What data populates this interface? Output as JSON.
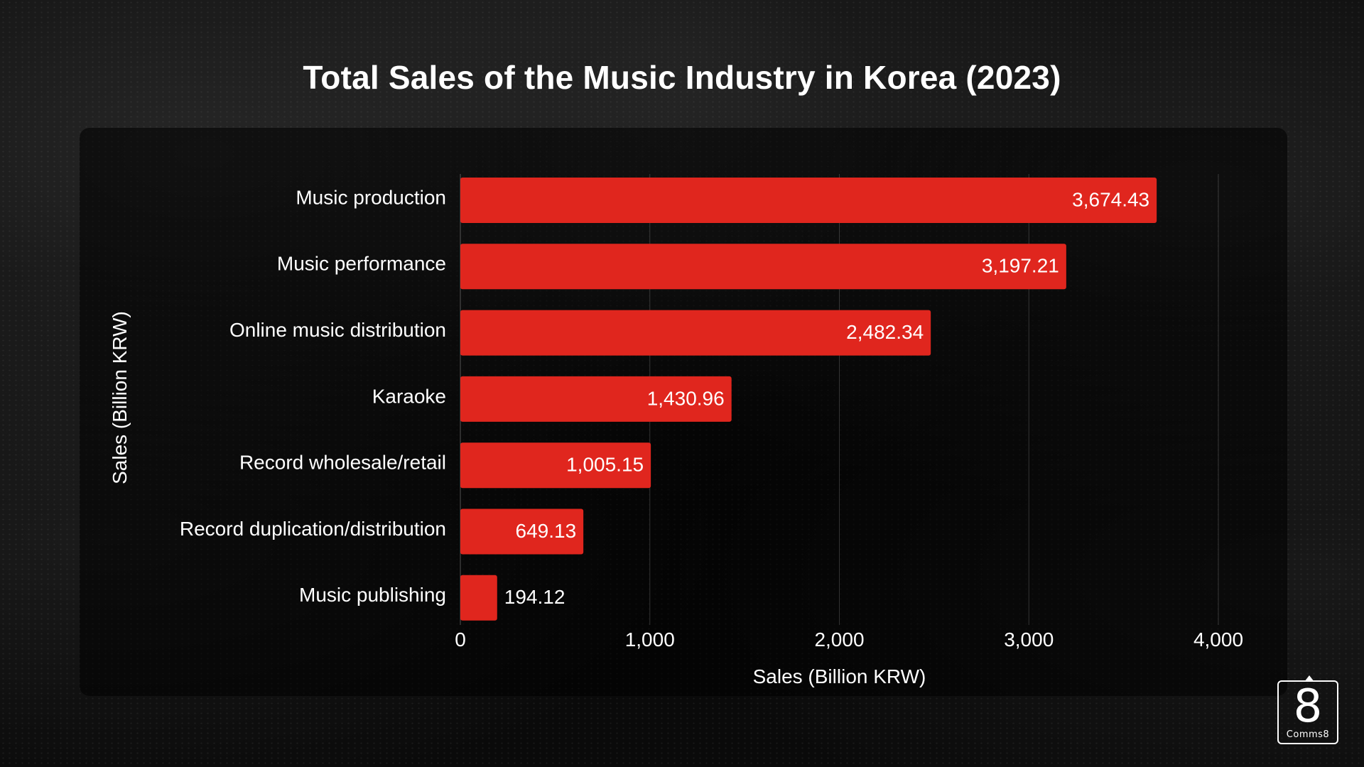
{
  "chart_data": {
    "type": "bar",
    "orientation": "horizontal",
    "title": "Total Sales of the Music Industry in Korea (2023)",
    "xlabel": "Sales (Billion KRW)",
    "ylabel": "Sales (Billion KRW)",
    "categories": [
      "Music production",
      "Music performance",
      "Online music distribution",
      "Karaoke",
      "Record wholesale/retail",
      "Record duplication/distribution",
      "Music publishing"
    ],
    "values": [
      3674.43,
      3197.21,
      2482.34,
      1430.96,
      1005.15,
      649.13,
      194.12
    ],
    "value_labels": [
      "3,674.43",
      "3,197.21",
      "2,482.34",
      "1,430.96",
      "1,005.15",
      "649.13",
      "194.12"
    ],
    "xlim": [
      0,
      4000
    ],
    "x_ticks": [
      0,
      1000,
      2000,
      3000,
      4000
    ],
    "x_tick_labels": [
      "0",
      "1,000",
      "2,000",
      "3,000",
      "4,000"
    ],
    "grid": true,
    "bar_color": "#E0261E",
    "background_color": "#050505",
    "text_color": "#FFFFFF"
  },
  "logo": {
    "number": "8",
    "text": "Comms8"
  }
}
